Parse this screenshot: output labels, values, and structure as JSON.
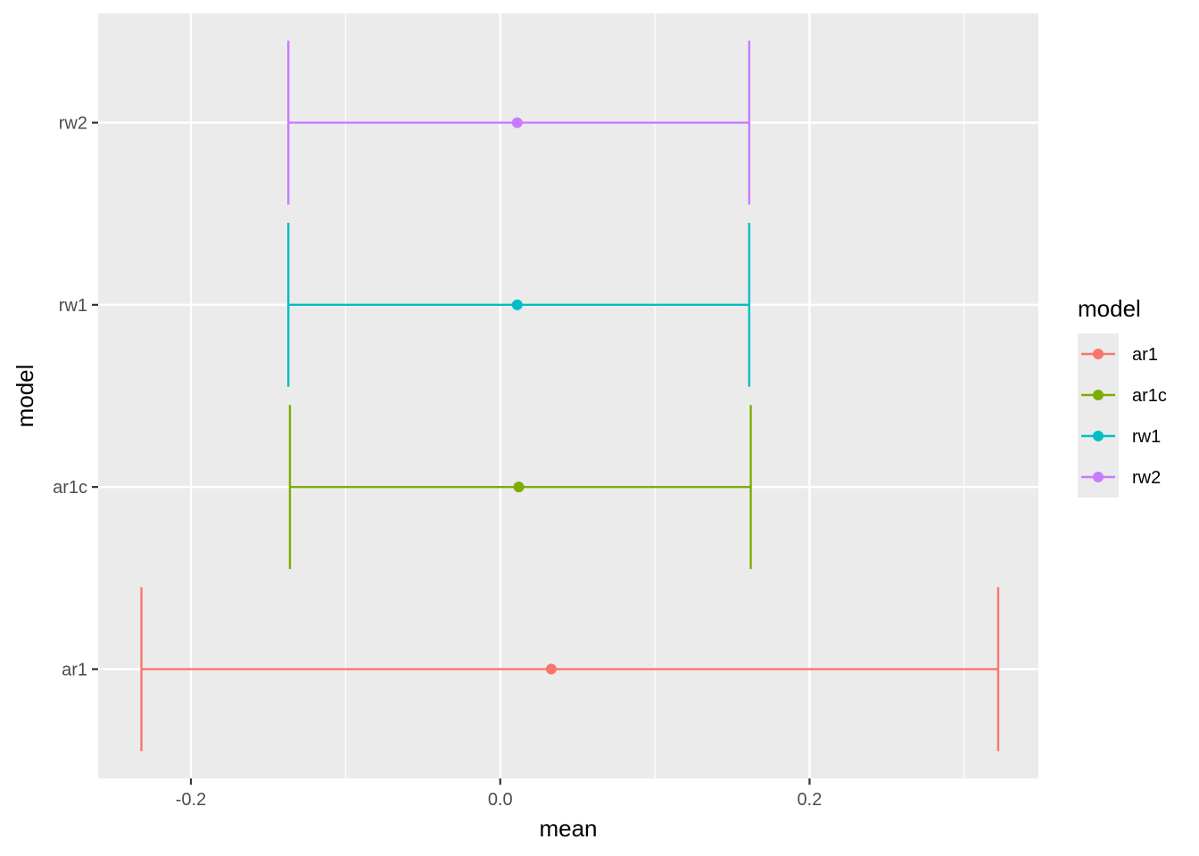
{
  "chart_data": {
    "type": "errorbar",
    "xlabel": "mean",
    "ylabel": "model",
    "xlim": [
      -0.26,
      0.348
    ],
    "x_ticks": [
      {
        "value": -0.2,
        "label": "-0.2"
      },
      {
        "value": 0.0,
        "label": "0.0"
      },
      {
        "value": 0.2,
        "label": "0.2"
      }
    ],
    "x_minor_ticks": [
      -0.1,
      0.1,
      0.3
    ],
    "categories": [
      "ar1",
      "ar1c",
      "rw1",
      "rw2"
    ],
    "series": [
      {
        "name": "ar1",
        "color": "#F8766D",
        "mean": 0.033,
        "lower": -0.232,
        "upper": 0.322
      },
      {
        "name": "ar1c",
        "color": "#7CAE00",
        "mean": 0.012,
        "lower": -0.136,
        "upper": 0.162
      },
      {
        "name": "rw1",
        "color": "#00BFC4",
        "mean": 0.011,
        "lower": -0.137,
        "upper": 0.161
      },
      {
        "name": "rw2",
        "color": "#C77CFF",
        "mean": 0.011,
        "lower": -0.137,
        "upper": 0.161
      }
    ],
    "legend": {
      "title": "model",
      "position": "right"
    },
    "grid": true,
    "panel_background": "#EBEBEB",
    "grid_color": "#FFFFFF"
  }
}
